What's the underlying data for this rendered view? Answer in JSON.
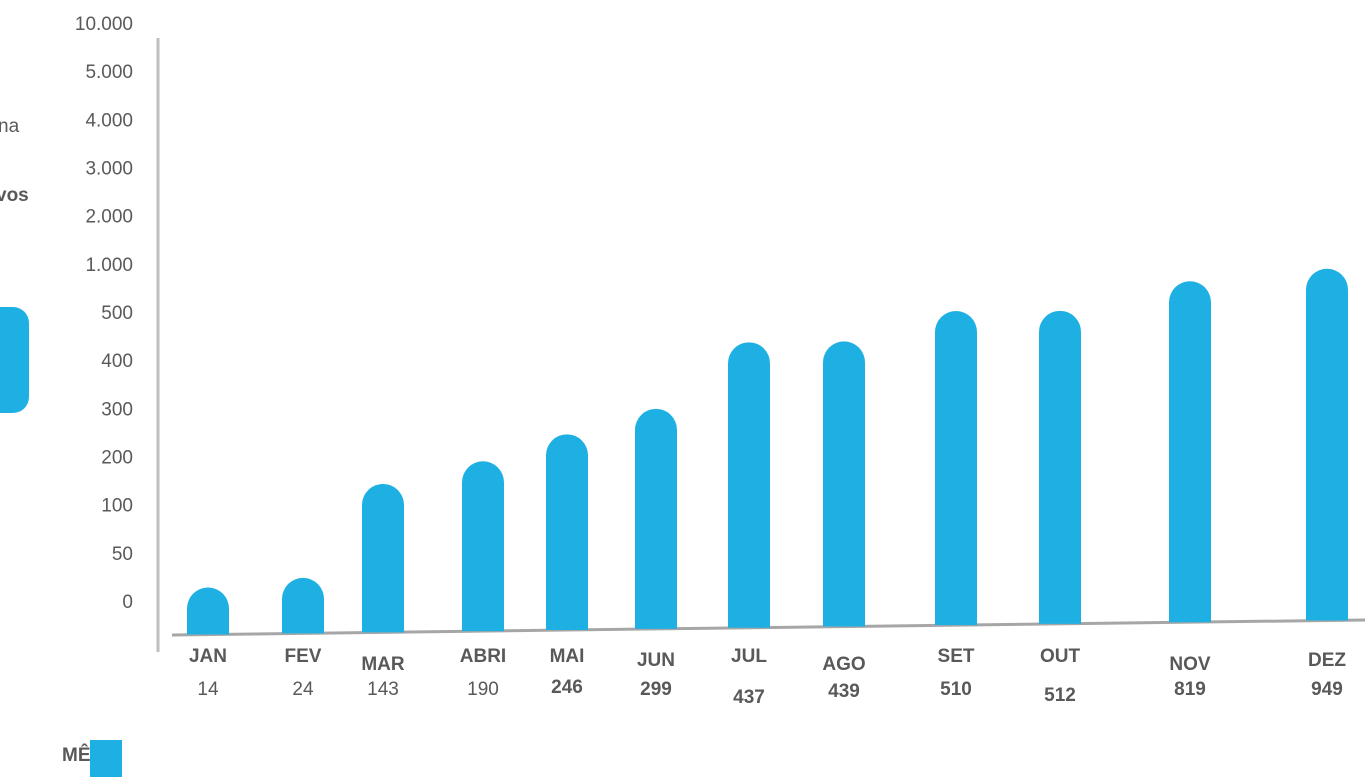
{
  "chart_data": {
    "type": "bar",
    "side_texts": [
      "na",
      "vos"
    ],
    "categories": [
      "JAN",
      "FEV",
      "MAR",
      "ABRI",
      "MAI",
      "JUN",
      "JUL",
      "AGO",
      "SET",
      "OUT",
      "NOV",
      "DEZ"
    ],
    "series": [
      {
        "name": "MÊS",
        "color": "#1fb0e3",
        "values": [
          14,
          24,
          143,
          190,
          246,
          299,
          437,
          439,
          510,
          512,
          819,
          949
        ]
      }
    ],
    "ylim": [
      0,
      10000
    ],
    "yticks": [
      0,
      50,
      100,
      200,
      300,
      400,
      500,
      {
        "value": 1000,
        "label": "1.000"
      },
      {
        "value": 2000,
        "label": "2.000"
      },
      {
        "value": 3000,
        "label": "3.000"
      },
      {
        "value": 4000,
        "label": "4.000"
      },
      {
        "value": 5000,
        "label": "5.000"
      },
      {
        "value": 10000,
        "label": "10.000"
      }
    ]
  }
}
